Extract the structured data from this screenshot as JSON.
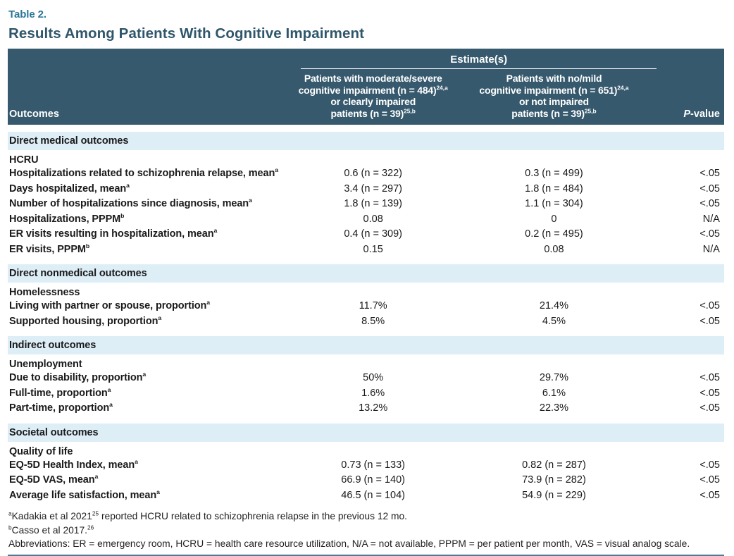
{
  "caption": {
    "label": "Table 2.",
    "title": "Results Among Patients With Cognitive Impairment"
  },
  "colors": {
    "header_background": "#36596d",
    "section_band_background": "#deeef7",
    "caption_label_teal": "#2a7699",
    "title_color": "#2f566b",
    "bottom_rule_color": "#4e7c97"
  },
  "header": {
    "outcomes_label": "Outcomes",
    "estimates_label": "Estimate(s)",
    "p_italic": "P",
    "p_rest": "-value",
    "col_moderate": {
      "line1": "Patients with moderate/severe",
      "line2": "cognitive impairment (n = 484)",
      "line2_sup": "24,a",
      "line3": "or clearly impaired",
      "line4": "patients (n = 39)",
      "line4_sup": "25,b"
    },
    "col_nomild": {
      "line1": "Patients with no/mild",
      "line2": "cognitive impairment (n = 651)",
      "line2_sup": "24,a",
      "line3": "or not impaired",
      "line4": "patients (n = 39)",
      "line4_sup": "25,b"
    }
  },
  "sections": [
    {
      "band": "Direct medical outcomes",
      "group": "HCRU",
      "rows": [
        {
          "label": "Hospitalizations related to schizophrenia relapse, mean",
          "sup": "a",
          "est1": "0.6 (n = 322)",
          "est2": "0.3 (n = 499)",
          "p": "<.05"
        },
        {
          "label": "Days hospitalized, mean",
          "sup": "a",
          "est1": "3.4 (n = 297)",
          "est2": "1.8 (n = 484)",
          "p": "<.05"
        },
        {
          "label": "Number of hospitalizations since diagnosis, mean",
          "sup": "a",
          "est1": "1.8 (n = 139)",
          "est2": "1.1 (n = 304)",
          "p": "<.05"
        },
        {
          "label": "Hospitalizations, PPPM",
          "sup": "b",
          "est1": "0.08",
          "est2": "0",
          "p": "N/A"
        },
        {
          "label": "ER visits resulting in hospitalization, mean",
          "sup": "a",
          "est1": "0.4 (n = 309)",
          "est2": "0.2 (n = 495)",
          "p": "<.05"
        },
        {
          "label": "ER visits, PPPM",
          "sup": "b",
          "est1": "0.15",
          "est2": "0.08",
          "p": "N/A"
        }
      ]
    },
    {
      "band": "Direct nonmedical outcomes",
      "group": "Homelessness",
      "rows": [
        {
          "label": "Living with partner or spouse, proportion",
          "sup": "a",
          "est1": "11.7%",
          "est2": "21.4%",
          "p": "<.05"
        },
        {
          "label": "Supported housing, proportion",
          "sup": "a",
          "est1": "8.5%",
          "est2": "4.5%",
          "p": "<.05"
        }
      ]
    },
    {
      "band": "Indirect outcomes",
      "group": "Unemployment",
      "rows": [
        {
          "label": "Due to disability, proportion",
          "sup": "a",
          "est1": "50%",
          "est2": "29.7%",
          "p": "<.05"
        },
        {
          "label": "Full-time, proportion",
          "sup": "a",
          "est1": "1.6%",
          "est2": "6.1%",
          "p": "<.05"
        },
        {
          "label": "Part-time, proportion",
          "sup": "a",
          "est1": "13.2%",
          "est2": "22.3%",
          "p": "<.05"
        }
      ]
    },
    {
      "band": "Societal outcomes",
      "group": "Quality of life",
      "rows": [
        {
          "label": "EQ-5D Health Index, mean",
          "sup": "a",
          "est1": "0.73 (n = 133)",
          "est2": "0.82 (n = 287)",
          "p": "<.05"
        },
        {
          "label": "EQ-5D VAS, mean",
          "sup": "a",
          "est1": "66.9 (n = 140)",
          "est2": "73.9 (n = 282)",
          "p": "<.05"
        },
        {
          "label": "Average life satisfaction, mean",
          "sup": "a",
          "est1": "46.5 (n = 104)",
          "est2": "54.9 (n = 229)",
          "p": "<.05"
        }
      ]
    }
  ],
  "footnotes": {
    "a_marker": "a",
    "a_before": "Kadakia et al 2021",
    "a_ref": "25",
    "a_after": " reported HCRU related to schizophrenia relapse in the previous 12 mo.",
    "b_marker": "b",
    "b_before": "Casso et al 2017.",
    "b_ref": "26",
    "abbreviations": "Abbreviations: ER = emergency room, HCRU = health care resource utilization, N/A = not available, PPPM = per patient per month, VAS = visual analog scale."
  }
}
